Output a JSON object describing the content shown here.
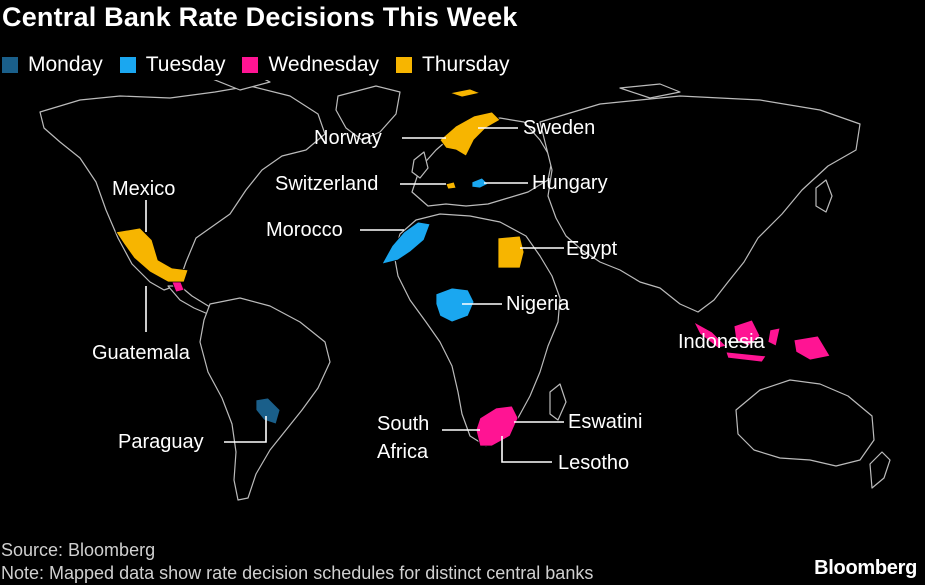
{
  "title": "Central Bank Rate Decisions This Week",
  "legend": [
    {
      "label": "Monday",
      "color": "#1a5f8a"
    },
    {
      "label": "Tuesday",
      "color": "#1aa7f0"
    },
    {
      "label": "Wednesday",
      "color": "#ff1493"
    },
    {
      "label": "Thursday",
      "color": "#f7b500"
    }
  ],
  "labels": {
    "norway": "Norway",
    "sweden": "Sweden",
    "switzerland": "Switzerland",
    "hungary": "Hungary",
    "mexico": "Mexico",
    "morocco": "Morocco",
    "egypt": "Egypt",
    "nigeria": "Nigeria",
    "guatemala": "Guatemala",
    "indonesia": "Indonesia",
    "paraguay": "Paraguay",
    "south_africa_line1": "South",
    "south_africa_line2": "Africa",
    "eswatini": "Eswatini",
    "lesotho": "Lesotho"
  },
  "source": "Source: Bloomberg",
  "note": "Note: Mapped data show rate decision schedules for distinct central banks",
  "brand": "Bloomberg"
}
